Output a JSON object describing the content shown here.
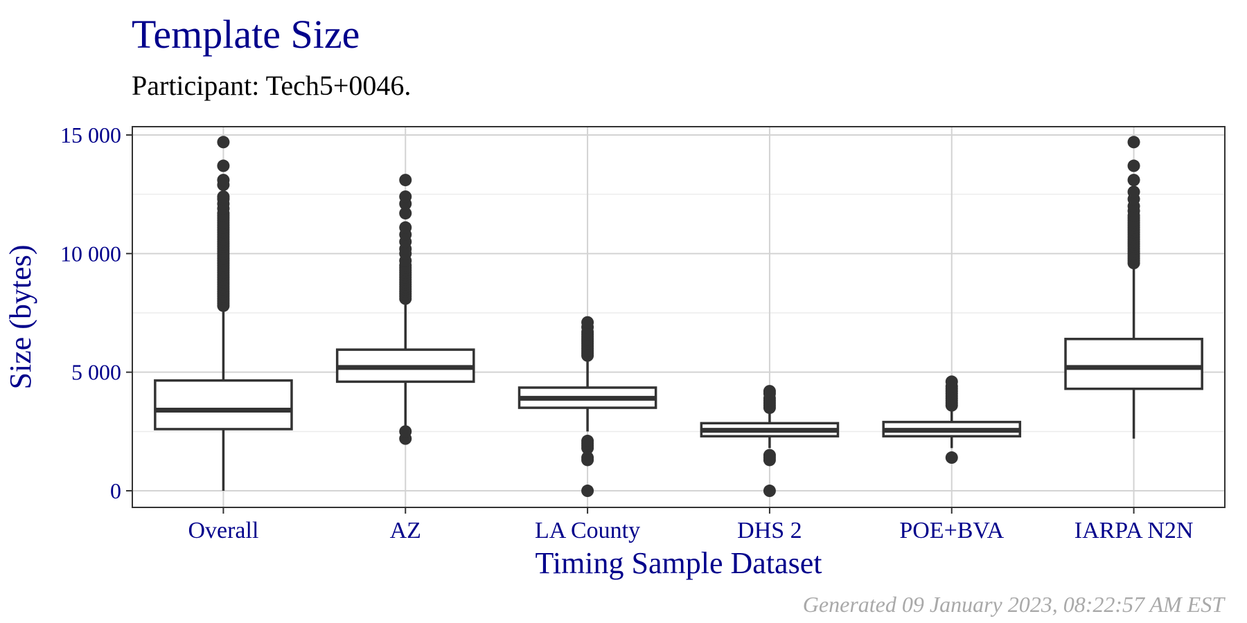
{
  "chart_data": {
    "type": "boxplot",
    "title": "Template Size",
    "subtitle": "Participant: Tech5+0046.",
    "xlabel": "Timing Sample Dataset",
    "ylabel": "Size (bytes)",
    "ylim": [
      -700,
      15350
    ],
    "yticks": [
      0,
      5000,
      10000,
      15000
    ],
    "ytick_labels": [
      "0",
      "5 000",
      "10 000",
      "15 000"
    ],
    "grid": true,
    "caption": "Generated 09 January 2023, 08:22:57 AM EST",
    "colors": {
      "title": "#00008b",
      "axis_text": "#00008b",
      "box": "#333333",
      "grid_major": "#d3d3d3",
      "grid_minor": "#ececec",
      "caption": "#a9a9a9"
    },
    "categories": [
      "Overall",
      "AZ",
      "LA County",
      "DHS 2",
      "POE+BVA",
      "IARPA N2N"
    ],
    "boxes": [
      {
        "whisker_low": 0,
        "q1": 2600,
        "median": 3400,
        "q3": 4650,
        "whisker_high": 7700,
        "outliers": [
          7800,
          7900,
          8000,
          8100,
          8200,
          8300,
          8400,
          8500,
          8600,
          8700,
          8800,
          8900,
          9000,
          9100,
          9200,
          9300,
          9400,
          9500,
          9600,
          9700,
          9800,
          9900,
          10000,
          10100,
          10200,
          10300,
          10400,
          10500,
          10600,
          10700,
          10800,
          10900,
          11000,
          11100,
          11200,
          11300,
          11400,
          11500,
          11600,
          11700,
          11900,
          12100,
          12300,
          12400,
          12900,
          13100,
          13700,
          14700
        ]
      },
      {
        "whisker_low": 2600,
        "q1": 4600,
        "median": 5200,
        "q3": 5950,
        "whisker_high": 8000,
        "outliers": [
          2200,
          2500,
          8100,
          8200,
          8300,
          8400,
          8500,
          8600,
          8700,
          8800,
          8900,
          9000,
          9100,
          9200,
          9300,
          9400,
          9500,
          9700,
          10000,
          10200,
          10500,
          10800,
          11100,
          11700,
          12100,
          12400,
          13100
        ]
      },
      {
        "whisker_low": 2500,
        "q1": 3500,
        "median": 3900,
        "q3": 4350,
        "whisker_high": 5600,
        "outliers": [
          0,
          1300,
          1400,
          1800,
          1900,
          2000,
          2100,
          5700,
          5800,
          5900,
          6000,
          6100,
          6200,
          6300,
          6400,
          6500,
          6600,
          6700,
          6900,
          7100
        ]
      },
      {
        "whisker_low": 1800,
        "q1": 2300,
        "median": 2550,
        "q3": 2850,
        "whisker_high": 3400,
        "outliers": [
          0,
          1300,
          1400,
          1500,
          3500,
          3600,
          3700,
          3800,
          3900,
          4100,
          4200
        ]
      },
      {
        "whisker_low": 1800,
        "q1": 2300,
        "median": 2550,
        "q3": 2900,
        "whisker_high": 3500,
        "outliers": [
          1400,
          3600,
          3700,
          3800,
          3900,
          4000,
          4100,
          4200,
          4300,
          4400,
          4600
        ]
      },
      {
        "whisker_low": 2200,
        "q1": 4300,
        "median": 5200,
        "q3": 6400,
        "whisker_high": 9500,
        "outliers": [
          9600,
          9700,
          9800,
          9900,
          10000,
          10100,
          10200,
          10300,
          10400,
          10500,
          10600,
          10700,
          10800,
          10900,
          11000,
          11100,
          11200,
          11300,
          11400,
          11500,
          11600,
          11800,
          12000,
          12300,
          12600,
          13100,
          13700,
          14700
        ]
      }
    ]
  }
}
